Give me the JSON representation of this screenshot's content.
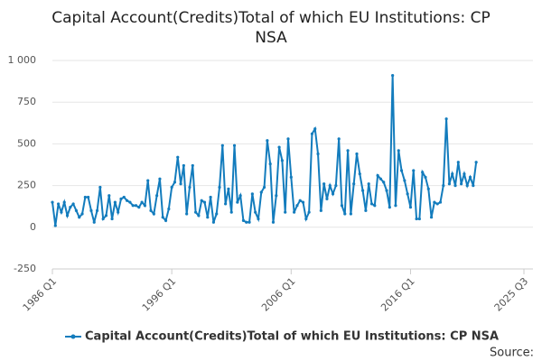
{
  "chart_data": {
    "type": "line",
    "title": [
      "Capital Account(Credits)Total of which EU Institutions: CP",
      "NSA"
    ],
    "x": [
      "1986 Q1",
      "1986 Q2",
      "1986 Q3",
      "1986 Q4",
      "1987 Q1",
      "1987 Q2",
      "1987 Q3",
      "1987 Q4",
      "1988 Q1",
      "1988 Q2",
      "1988 Q3",
      "1988 Q4",
      "1989 Q1",
      "1989 Q2",
      "1989 Q3",
      "1989 Q4",
      "1990 Q1",
      "1990 Q2",
      "1990 Q3",
      "1990 Q4",
      "1991 Q1",
      "1991 Q2",
      "1991 Q3",
      "1991 Q4",
      "1992 Q1",
      "1992 Q2",
      "1992 Q3",
      "1992 Q4",
      "1993 Q1",
      "1993 Q2",
      "1993 Q3",
      "1993 Q4",
      "1994 Q1",
      "1994 Q2",
      "1994 Q3",
      "1994 Q4",
      "1995 Q1",
      "1995 Q2",
      "1995 Q3",
      "1995 Q4",
      "1996 Q1",
      "1996 Q2",
      "1996 Q3",
      "1996 Q4",
      "1997 Q1",
      "1997 Q2",
      "1997 Q3",
      "1997 Q4",
      "1998 Q1",
      "1998 Q2",
      "1998 Q3",
      "1998 Q4",
      "1999 Q1",
      "1999 Q2",
      "1999 Q3",
      "1999 Q4",
      "2000 Q1",
      "2000 Q2",
      "2000 Q3",
      "2000 Q4",
      "2001 Q1",
      "2001 Q2",
      "2001 Q3",
      "2001 Q4",
      "2002 Q1",
      "2002 Q2",
      "2002 Q3",
      "2002 Q4",
      "2003 Q1",
      "2003 Q2",
      "2003 Q3",
      "2003 Q4",
      "2004 Q1",
      "2004 Q2",
      "2004 Q3",
      "2004 Q4",
      "2005 Q1",
      "2005 Q2",
      "2005 Q3",
      "2005 Q4",
      "2006 Q1",
      "2006 Q2",
      "2006 Q3",
      "2006 Q4",
      "2007 Q1",
      "2007 Q2",
      "2007 Q3",
      "2007 Q4",
      "2008 Q1",
      "2008 Q2",
      "2008 Q3",
      "2008 Q4",
      "2009 Q1",
      "2009 Q2",
      "2009 Q3",
      "2009 Q4",
      "2010 Q1",
      "2010 Q2",
      "2010 Q3",
      "2010 Q4",
      "2011 Q1",
      "2011 Q2",
      "2011 Q3",
      "2011 Q4",
      "2012 Q1",
      "2012 Q2",
      "2012 Q3",
      "2012 Q4",
      "2013 Q1",
      "2013 Q2",
      "2013 Q3",
      "2013 Q4",
      "2014 Q1",
      "2014 Q2",
      "2014 Q3",
      "2014 Q4",
      "2015 Q1",
      "2015 Q2",
      "2015 Q3",
      "2015 Q4",
      "2016 Q1",
      "2016 Q2",
      "2016 Q3",
      "2016 Q4",
      "2017 Q1",
      "2017 Q2",
      "2017 Q3",
      "2017 Q4",
      "2018 Q1",
      "2018 Q2",
      "2018 Q3",
      "2018 Q4",
      "2019 Q1",
      "2019 Q2",
      "2019 Q3",
      "2019 Q4",
      "2020 Q1",
      "2020 Q2",
      "2020 Q3",
      "2020 Q4",
      "2021 Q1",
      "2021 Q2",
      "2021 Q3"
    ],
    "series": [
      {
        "name": "Capital Account(Credits)Total of which EU Institutions: CP NSA",
        "color": "#137cbd",
        "values": [
          150,
          10,
          140,
          90,
          150,
          70,
          120,
          140,
          100,
          60,
          80,
          180,
          180,
          100,
          30,
          100,
          240,
          50,
          70,
          190,
          50,
          150,
          90,
          170,
          180,
          160,
          150,
          130,
          130,
          120,
          150,
          130,
          280,
          100,
          80,
          190,
          290,
          60,
          40,
          110,
          240,
          270,
          420,
          260,
          370,
          80,
          240,
          370,
          90,
          70,
          160,
          150,
          60,
          180,
          30,
          80,
          240,
          490,
          140,
          230,
          90,
          490,
          150,
          190,
          40,
          30,
          30,
          200,
          90,
          50,
          210,
          240,
          520,
          380,
          30,
          190,
          480,
          400,
          90,
          530,
          300,
          90,
          130,
          160,
          150,
          50,
          90,
          560,
          590,
          440,
          100,
          260,
          170,
          250,
          200,
          250,
          530,
          130,
          80,
          460,
          80,
          260,
          440,
          320,
          220,
          100,
          260,
          140,
          130,
          310,
          290,
          270,
          220,
          120,
          910,
          130,
          460,
          340,
          280,
          200,
          120,
          340,
          50,
          50,
          330,
          300,
          230,
          60,
          150,
          140,
          150,
          250,
          650,
          260,
          320,
          250,
          390,
          260,
          320,
          250,
          300,
          250,
          390
        ]
      }
    ],
    "xlim": [
      "1986 Q1",
      "2025 Q3"
    ],
    "xticks": [
      "1986 Q1",
      "1996 Q1",
      "2006 Q1",
      "2016 Q1",
      "2025 Q3"
    ],
    "ylim": [
      -250,
      1000
    ],
    "yticks": [
      -250,
      0,
      250,
      500,
      750,
      {
        "value": 1000,
        "label": "1 000"
      }
    ],
    "grid": true,
    "legend": "bottom",
    "source": "Source:"
  }
}
